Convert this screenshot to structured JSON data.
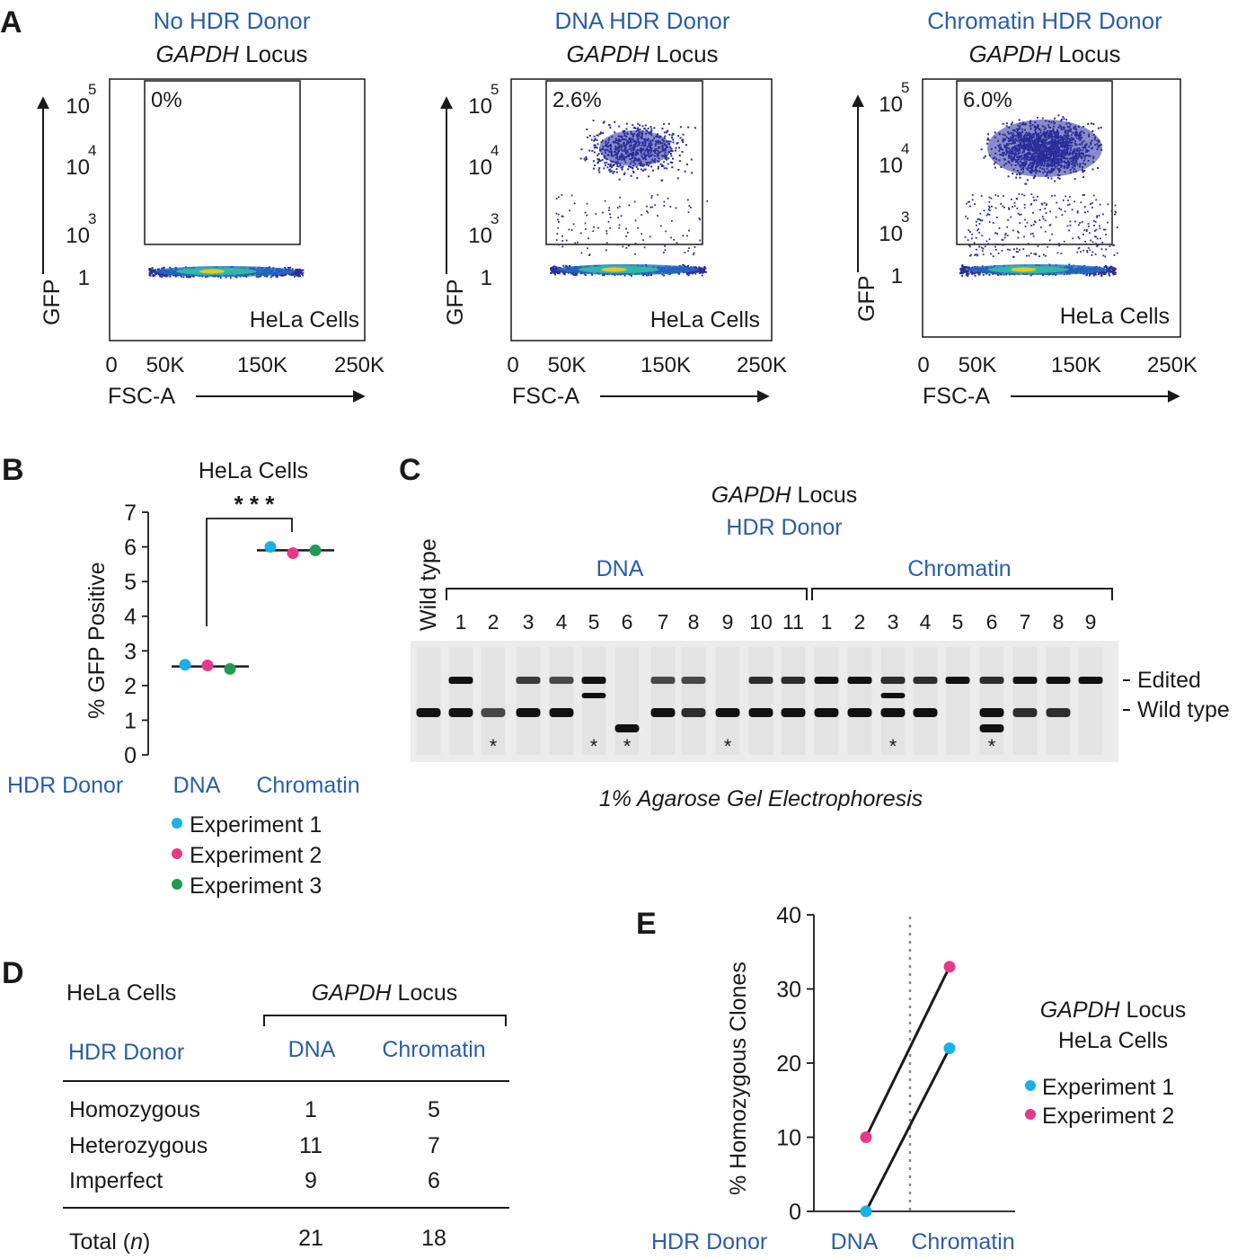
{
  "colors": {
    "blue": "#2a5ea8",
    "exp1": "#1ab0e8",
    "exp2": "#e8388a",
    "exp3": "#1f9a4e",
    "gel_bg": "#ececec",
    "band": "#111111"
  },
  "panel_a": {
    "letter": "A",
    "plots": [
      {
        "title": "No HDR Donor",
        "locus_italic": "GAPDH",
        "locus_rest": " Locus",
        "gate_percent": "0%",
        "cells_label": "HeLa Cells",
        "pos_density": 0
      },
      {
        "title": "DNA HDR Donor",
        "locus_italic": "GAPDH",
        "locus_rest": " Locus",
        "gate_percent": "2.6%",
        "cells_label": "HeLa Cells",
        "pos_density": 1
      },
      {
        "title": "Chromatin HDR Donor",
        "locus_italic": "GAPDH",
        "locus_rest": " Locus",
        "gate_percent": "6.0%",
        "cells_label": "HeLa Cells",
        "pos_density": 2.4
      }
    ],
    "y_ticks": [
      {
        "base": "10",
        "exp": "5"
      },
      {
        "base": "10",
        "exp": "4"
      },
      {
        "base": "10",
        "exp": "3"
      },
      {
        "base": "1",
        "exp": ""
      }
    ],
    "x_ticks": [
      "0",
      "50K",
      "150K",
      "250K"
    ],
    "y_label": "GFP",
    "x_label": "FSC-A"
  },
  "panel_b": {
    "letter": "B",
    "chart_data": {
      "type": "scatter",
      "title": "HeLa Cells",
      "ylabel": "% GFP Positive",
      "ylim": [
        0,
        7
      ],
      "yticks": [
        "0",
        "1",
        "2",
        "3",
        "4",
        "5",
        "6",
        "7"
      ],
      "x_prefix": "HDR Donor",
      "categories": [
        "DNA",
        "Chromatin"
      ],
      "means": [
        2.55,
        5.9
      ],
      "series": [
        {
          "name": "Experiment 1",
          "values": [
            2.6,
            6.0
          ]
        },
        {
          "name": "Experiment 2",
          "values": [
            2.58,
            5.82
          ]
        },
        {
          "name": "Experiment 3",
          "values": [
            2.48,
            5.9
          ]
        }
      ],
      "significance": "* * *"
    }
  },
  "panel_c": {
    "letter": "C",
    "locus_italic": "GAPDH",
    "locus_rest": " Locus",
    "donor_label": "HDR Donor",
    "wild_type_lane": "Wild type",
    "groups": [
      {
        "name": "DNA",
        "lanes": [
          "1",
          "2",
          "3",
          "4",
          "5",
          "6",
          "7",
          "8",
          "9",
          "10",
          "11"
        ]
      },
      {
        "name": "Chromatin",
        "lanes": [
          "1",
          "2",
          "3",
          "4",
          "5",
          "6",
          "7",
          "8",
          "9"
        ]
      }
    ],
    "marker_edited": "Edited",
    "marker_wild_type": "Wild type",
    "asterisk": "*",
    "caption": "1% Agarose Gel Electrophoresis",
    "lane_bands": [
      {
        "lane": "WT",
        "edited": 0,
        "wild": 1,
        "extra": "",
        "star": false
      },
      {
        "lane": "DNA 1",
        "edited": 1,
        "wild": 1,
        "extra": "",
        "star": false
      },
      {
        "lane": "DNA 2",
        "edited": 0,
        "wild": 0.6,
        "extra": "",
        "star": true
      },
      {
        "lane": "DNA 3",
        "edited": 0.7,
        "wild": 1,
        "extra": "",
        "star": false
      },
      {
        "lane": "DNA 4",
        "edited": 0.6,
        "wild": 1,
        "extra": "",
        "star": false
      },
      {
        "lane": "DNA 5",
        "edited": 1,
        "wild": 0,
        "extra": "mid",
        "star": true
      },
      {
        "lane": "DNA 6",
        "edited": 0,
        "wild": 0,
        "extra": "low",
        "star": true
      },
      {
        "lane": "DNA 7",
        "edited": 0.6,
        "wild": 1,
        "extra": "",
        "star": false
      },
      {
        "lane": "DNA 8",
        "edited": 0.6,
        "wild": 0.8,
        "extra": "",
        "star": false
      },
      {
        "lane": "DNA 9",
        "edited": 0,
        "wild": 1,
        "extra": "",
        "star": true
      },
      {
        "lane": "DNA 10",
        "edited": 0.8,
        "wild": 1,
        "extra": "",
        "star": false
      },
      {
        "lane": "DNA 11",
        "edited": 0.8,
        "wild": 1,
        "extra": "",
        "star": false
      },
      {
        "lane": "Chromatin 1",
        "edited": 1,
        "wild": 1,
        "extra": "",
        "star": false
      },
      {
        "lane": "Chromatin 2",
        "edited": 1,
        "wild": 1,
        "extra": "",
        "star": false
      },
      {
        "lane": "Chromatin 3",
        "edited": 0.8,
        "wild": 1,
        "extra": "mid",
        "star": true
      },
      {
        "lane": "Chromatin 4",
        "edited": 0.8,
        "wild": 1,
        "extra": "",
        "star": false
      },
      {
        "lane": "Chromatin 5",
        "edited": 1,
        "wild": 0,
        "extra": "",
        "star": false
      },
      {
        "lane": "Chromatin 6",
        "edited": 0.8,
        "wild": 1,
        "extra": "low",
        "star": true
      },
      {
        "lane": "Chromatin 7",
        "edited": 1,
        "wild": 0.8,
        "extra": "",
        "star": false
      },
      {
        "lane": "Chromatin 8",
        "edited": 1,
        "wild": 0.8,
        "extra": "",
        "star": false
      },
      {
        "lane": "Chromatin 9",
        "edited": 1,
        "wild": 0,
        "extra": "",
        "star": false
      }
    ]
  },
  "panel_d": {
    "letter": "D",
    "chart_data": {
      "type": "table",
      "cells_label": "HeLa Cells",
      "locus_italic": "GAPDH",
      "locus_rest": " Locus",
      "row_header": "HDR Donor",
      "columns": [
        "DNA",
        "Chromatin"
      ],
      "rows": [
        {
          "label": "Homozygous",
          "values": [
            "1",
            "5"
          ]
        },
        {
          "label": "Heterozygous",
          "values": [
            "11",
            "7"
          ]
        },
        {
          "label": "Imperfect",
          "values": [
            "9",
            "6"
          ]
        }
      ],
      "total": {
        "label": "Total (",
        "label_italic": "n",
        "label_end": ")",
        "values": [
          "21",
          "18"
        ]
      }
    }
  },
  "panel_e": {
    "letter": "E",
    "chart_data": {
      "type": "line",
      "ylabel": "% Homozygous Clones",
      "ylim": [
        0,
        40
      ],
      "yticks": [
        "0",
        "10",
        "20",
        "30",
        "40"
      ],
      "x_prefix": "HDR Donor",
      "categories": [
        "DNA",
        "Chromatin"
      ],
      "series": [
        {
          "name": "Experiment 1",
          "values": [
            0,
            22
          ]
        },
        {
          "name": "Experiment 2",
          "values": [
            10,
            33
          ]
        }
      ],
      "legend_title_italic": "GAPDH",
      "legend_title_rest": " Locus",
      "legend_subtitle": "HeLa Cells"
    }
  }
}
